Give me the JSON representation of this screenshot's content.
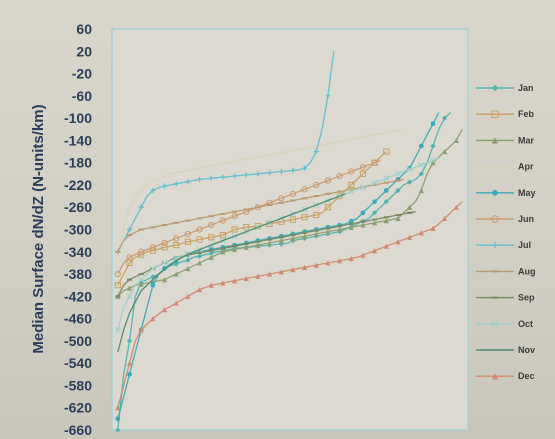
{
  "chart_data": {
    "type": "line",
    "title": "",
    "ylabel": "Median Surface dN/dZ (N-units/km)",
    "xlabel": "",
    "ylim": [
      -660,
      60
    ],
    "yticks": [
      60,
      20,
      -20,
      -60,
      -100,
      -140,
      -180,
      -220,
      -260,
      -300,
      -340,
      -380,
      -420,
      -460,
      -500,
      -540,
      -580,
      -620,
      -660
    ],
    "ytick_labels": [
      "60",
      "20",
      "-20",
      "-60",
      "-100",
      "-140",
      "-180",
      "-220",
      "-260",
      "-300",
      "-340",
      "-380",
      "-420",
      "-460",
      "-500",
      "-540",
      "-580",
      "-620",
      "-660"
    ],
    "x": [
      1,
      2,
      3,
      4,
      5,
      6,
      7,
      8,
      9,
      10,
      11,
      12,
      13,
      14,
      15,
      16,
      17,
      18,
      19,
      20,
      21,
      22,
      23,
      24,
      25,
      26,
      27,
      28,
      29,
      30,
      31,
      32,
      33,
      34,
      35,
      36,
      37,
      38,
      39,
      40,
      41,
      42,
      43,
      44,
      45,
      46,
      47,
      48,
      49,
      50,
      51,
      52,
      53,
      54,
      55,
      56,
      57,
      58,
      59,
      60
    ],
    "xlim": [
      0,
      61
    ],
    "legend_position": "right",
    "series": [
      {
        "name": "Jan",
        "color": "#4fb3b0",
        "marker": "diamond",
        "values": [
          -660,
          -560,
          -500,
          -420,
          -395,
          -390,
          -385,
          -380,
          -370,
          -365,
          -362,
          -358,
          -355,
          -350,
          -348,
          -345,
          -343,
          -340,
          -338,
          -336,
          -334,
          -333,
          -332,
          -331,
          -330,
          -329,
          -328,
          -327,
          -326,
          -325,
          -320,
          -318,
          -316,
          -314,
          -312,
          -310,
          -308,
          -306,
          -304,
          -300,
          -295,
          -290,
          -285,
          -280,
          -270,
          -260,
          -250,
          -240,
          -230,
          -220,
          -215,
          -210,
          -200,
          -180,
          -150,
          -120,
          -100,
          -90,
          null,
          null
        ]
      },
      {
        "name": "Feb",
        "color": "#c8a060",
        "marker": "square",
        "values": [
          -400,
          -380,
          -360,
          -350,
          -345,
          -340,
          -338,
          -335,
          -332,
          -330,
          -328,
          -325,
          -322,
          -320,
          -318,
          -316,
          -314,
          -312,
          -310,
          -305,
          -300,
          -298,
          -296,
          -295,
          -294,
          -292,
          -290,
          -288,
          -286,
          -284,
          -282,
          -280,
          -278,
          -276,
          -274,
          -270,
          -260,
          -250,
          -240,
          -230,
          -220,
          -210,
          -200,
          -190,
          -180,
          -170,
          -160,
          null,
          null,
          null,
          null,
          null,
          null,
          null,
          null,
          null,
          null,
          null,
          null,
          null
        ]
      },
      {
        "name": "Mar",
        "color": "#8aa070",
        "marker": "triangle",
        "values": [
          -420,
          -410,
          -405,
          -400,
          -398,
          -396,
          -394,
          -392,
          -390,
          -385,
          -380,
          -375,
          -370,
          -365,
          -360,
          -355,
          -350,
          -345,
          -340,
          -338,
          -336,
          -334,
          -332,
          -330,
          -328,
          -326,
          -324,
          -322,
          -320,
          -318,
          -316,
          -314,
          -312,
          -310,
          -308,
          -306,
          -304,
          -302,
          -300,
          -298,
          -296,
          -294,
          -292,
          -290,
          -288,
          -286,
          -284,
          -282,
          -280,
          -270,
          -260,
          -250,
          -230,
          -200,
          -180,
          -170,
          -160,
          -150,
          -140,
          -120
        ]
      },
      {
        "name": "Apr",
        "color": "#d8d2b8",
        "marker": "none",
        "values": [
          -340,
          -300,
          -260,
          -240,
          -230,
          -220,
          -215,
          -210,
          -205,
          -200,
          -198,
          -196,
          -194,
          -192,
          -190,
          -188,
          -186,
          -184,
          -182,
          -180,
          -178,
          -176,
          -174,
          -172,
          -170,
          -168,
          -166,
          -164,
          -162,
          -160,
          -158,
          -156,
          -154,
          -152,
          -150,
          -148,
          -146,
          -144,
          -142,
          -140,
          -138,
          -136,
          -134,
          -132,
          -130,
          -128,
          -126,
          -124,
          -122,
          -120,
          null,
          null,
          null,
          null,
          null,
          null,
          null,
          null,
          null,
          null
        ]
      },
      {
        "name": "May",
        "color": "#3aa9b8",
        "marker": "circle",
        "values": [
          -640,
          -600,
          -560,
          -520,
          -480,
          -440,
          -400,
          -380,
          -370,
          -362,
          -356,
          -350,
          -345,
          -342,
          -340,
          -338,
          -336,
          -334,
          -332,
          -330,
          -328,
          -326,
          -324,
          -322,
          -320,
          -318,
          -316,
          -314,
          -312,
          -310,
          -308,
          -306,
          -304,
          -302,
          -300,
          -298,
          -296,
          -294,
          -292,
          -290,
          -285,
          -280,
          -270,
          -260,
          -250,
          -240,
          -230,
          -220,
          -210,
          -200,
          -190,
          -170,
          -150,
          -130,
          -110,
          -90,
          null,
          null,
          null,
          null
        ]
      },
      {
        "name": "Jun",
        "color": "#c89a70",
        "marker": "circle-open",
        "values": [
          -380,
          -360,
          -350,
          -345,
          -340,
          -336,
          -332,
          -328,
          -324,
          -320,
          -316,
          -312,
          -308,
          -304,
          -300,
          -296,
          -292,
          -288,
          -284,
          -280,
          -276,
          -272,
          -268,
          -264,
          -260,
          -256,
          -252,
          -248,
          -244,
          -240,
          -236,
          -232,
          -228,
          -224,
          -220,
          -216,
          -212,
          -208,
          -204,
          -200,
          -196,
          -192,
          -188,
          -184,
          -180,
          -176,
          null,
          null,
          null,
          null,
          null,
          null,
          null,
          null,
          null,
          null,
          null,
          null,
          null,
          null
        ]
      },
      {
        "name": "Jul",
        "color": "#5fbfcf",
        "marker": "plus",
        "values": [
          -340,
          -320,
          -300,
          -280,
          -260,
          -240,
          -230,
          -225,
          -222,
          -220,
          -218,
          -216,
          -214,
          -212,
          -210,
          -209,
          -208,
          -207,
          -206,
          -205,
          -204,
          -203,
          -202,
          -201,
          -200,
          -199,
          -198,
          -197,
          -196,
          -195,
          -194,
          -193,
          -190,
          -180,
          -160,
          -120,
          -60,
          20,
          null,
          null,
          null,
          null,
          null,
          null,
          null,
          null,
          null,
          null,
          null,
          null,
          null,
          null,
          null,
          null,
          null,
          null,
          null,
          null,
          null,
          null
        ]
      },
      {
        "name": "Aug",
        "color": "#b89a70",
        "marker": "dash",
        "values": [
          -340,
          -320,
          -310,
          -305,
          -300,
          -298,
          -296,
          -294,
          -292,
          -290,
          -288,
          -286,
          -284,
          -282,
          -280,
          -278,
          -276,
          -274,
          -272,
          -270,
          -268,
          -266,
          -264,
          -262,
          -260,
          -258,
          -256,
          -254,
          -252,
          -250,
          -248,
          -246,
          -244,
          -242,
          -240,
          -238,
          -236,
          -234,
          -232,
          -230,
          -228,
          -226,
          -224,
          -222,
          -220,
          -218,
          -216,
          -214,
          -212,
          -210,
          null,
          null,
          null,
          null,
          null,
          null,
          null,
          null,
          null,
          null
        ]
      },
      {
        "name": "Sep",
        "color": "#7a8a60",
        "marker": "dash",
        "values": [
          -420,
          -400,
          -390,
          -385,
          -380,
          -375,
          -370,
          -365,
          -360,
          -355,
          -350,
          -348,
          -346,
          -344,
          -342,
          -340,
          -338,
          -336,
          -334,
          -332,
          -330,
          -328,
          -326,
          -324,
          -322,
          -320,
          -318,
          -316,
          -314,
          -312,
          -310,
          -308,
          -306,
          -304,
          -302,
          -300,
          -298,
          -296,
          -294,
          -292,
          -290,
          -288,
          -286,
          -284,
          -282,
          -280,
          -278,
          -276,
          -274,
          -272,
          -270,
          -268,
          null,
          null,
          null,
          null,
          null,
          null,
          null,
          null
        ]
      },
      {
        "name": "Oct",
        "color": "#9fcfc8",
        "marker": "x",
        "values": [
          -480,
          -440,
          -420,
          -400,
          -390,
          -380,
          -370,
          -365,
          -360,
          -356,
          -352,
          -348,
          -344,
          -340,
          -336,
          -332,
          -328,
          -324,
          -320,
          -316,
          -312,
          -308,
          -304,
          -300,
          -296,
          -292,
          -288,
          -284,
          -280,
          -276,
          -272,
          -268,
          -264,
          -260,
          -256,
          -252,
          -248,
          -244,
          -240,
          -236,
          -232,
          -228,
          -224,
          -220,
          -216,
          -212,
          -208,
          -204,
          -200,
          -196,
          -192,
          -188,
          -184,
          -180,
          -176,
          -172,
          null,
          null,
          null,
          null
        ]
      },
      {
        "name": "Nov",
        "color": "#4a8a70",
        "marker": "none",
        "values": [
          -520,
          -480,
          -450,
          -430,
          -410,
          -400,
          -390,
          -380,
          -372,
          -364,
          -356,
          -350,
          -345,
          -340,
          -336,
          -332,
          -328,
          -324,
          -320,
          -316,
          -312,
          -308,
          -304,
          -300,
          -296,
          -292,
          -288,
          -284,
          -280,
          -276,
          -272,
          -268,
          -264,
          -260,
          -256,
          -252,
          -248,
          -244,
          -240,
          -236,
          null,
          null,
          null,
          null,
          null,
          null,
          null,
          null,
          null,
          null,
          null,
          null,
          null,
          null,
          null,
          null,
          null,
          null,
          null,
          null
        ]
      },
      {
        "name": "Dec",
        "color": "#d08a70",
        "marker": "triangle",
        "values": [
          -620,
          -580,
          -540,
          -500,
          -480,
          -470,
          -460,
          -452,
          -444,
          -438,
          -432,
          -426,
          -420,
          -414,
          -408,
          -404,
          -400,
          -398,
          -396,
          -394,
          -392,
          -390,
          -388,
          -386,
          -384,
          -382,
          -380,
          -378,
          -376,
          -374,
          -372,
          -370,
          -368,
          -366,
          -364,
          -362,
          -360,
          -358,
          -356,
          -354,
          -352,
          -350,
          -346,
          -342,
          -338,
          -334,
          -330,
          -326,
          -322,
          -318,
          -314,
          -310,
          -306,
          -302,
          -298,
          -290,
          -280,
          -270,
          -260,
          -250
        ]
      }
    ]
  }
}
